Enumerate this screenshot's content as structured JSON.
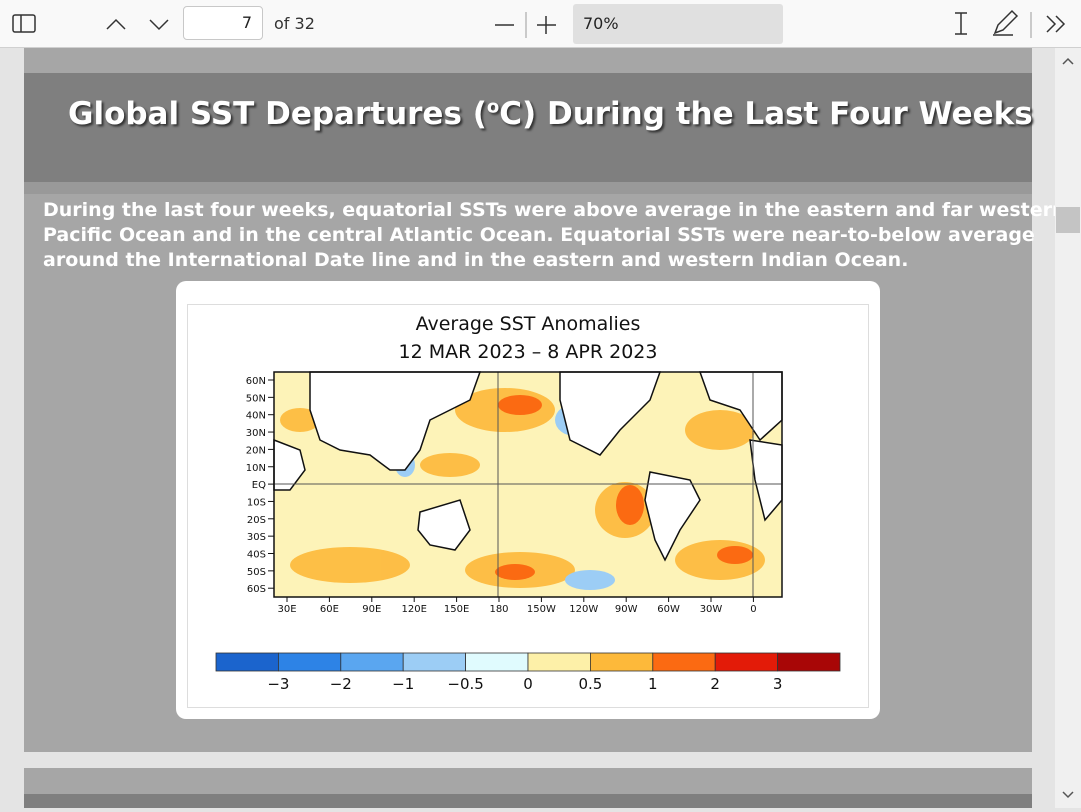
{
  "toolbar": {
    "page_number": "7",
    "page_count": "of 32",
    "zoom": "70%"
  },
  "slide": {
    "title": {
      "before": "Global SST Departures (",
      "superscript": "o",
      "after": "C) During the Last Four Weeks"
    },
    "body": [
      "During the last four weeks, equatorial SSTs were above average in the eastern and far western",
      "Pacific Ocean and in the central Atlantic Ocean. Equatorial SSTs were near-to-below average",
      "around the International Date line and in the eastern and western Indian Ocean."
    ],
    "figure": {
      "title": "Average SST Anomalies",
      "subtitle": "12 MAR 2023 – 8 APR 2023",
      "lat_labels": [
        "60N",
        "50N",
        "40N",
        "30N",
        "20N",
        "10N",
        "EQ",
        "10S",
        "20S",
        "30S",
        "40S",
        "50S",
        "60S"
      ],
      "lon_labels": [
        "30E",
        "60E",
        "90E",
        "120E",
        "150E",
        "180",
        "150W",
        "120W",
        "90W",
        "60W",
        "30W",
        "0"
      ],
      "colorbar": {
        "colors": [
          "#1b64cd",
          "#2d83e6",
          "#5aa6f0",
          "#9ccdf5",
          "#e0fbfe",
          "#fdf0a8",
          "#fdb93a",
          "#fb6a12",
          "#e31b08",
          "#a80606"
        ],
        "labels": [
          "−3",
          "−2",
          "−1",
          "−0.5",
          "0",
          "0.5",
          "1",
          "2",
          "3"
        ]
      }
    }
  }
}
